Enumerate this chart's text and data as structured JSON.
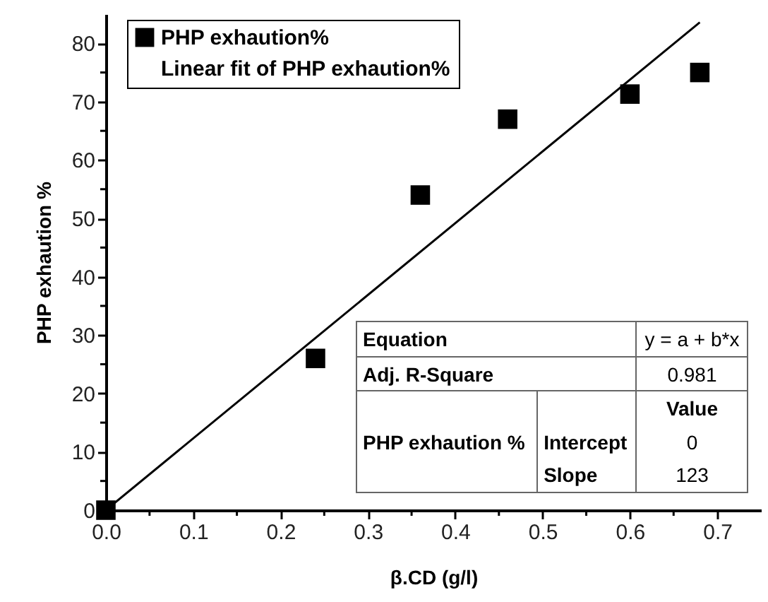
{
  "chart_data": {
    "type": "scatter",
    "xlabel": "β.CD (g/l)",
    "ylabel": "PHP exhaution %",
    "xlim": [
      0,
      0.75
    ],
    "ylim": [
      0,
      85
    ],
    "xticks": [
      {
        "value": 0,
        "label": "0.0"
      },
      {
        "value": 0.05,
        "label": null
      },
      0.1,
      {
        "value": 0.15,
        "label": null
      },
      0.2,
      {
        "value": 0.25,
        "label": null
      },
      0.3,
      {
        "value": 0.35,
        "label": null
      },
      0.4,
      {
        "value": 0.45,
        "label": null
      },
      0.5,
      {
        "value": 0.55,
        "label": null
      },
      0.6,
      {
        "value": 0.65,
        "label": null
      },
      0.7
    ],
    "yticks": [
      0,
      {
        "value": 5,
        "label": null
      },
      10,
      {
        "value": 15,
        "label": null
      },
      20,
      {
        "value": 25,
        "label": null
      },
      30,
      {
        "value": 35,
        "label": null
      },
      40,
      {
        "value": 45,
        "label": null
      },
      50,
      {
        "value": 55,
        "label": null
      },
      60,
      {
        "value": 65,
        "label": null
      },
      70,
      {
        "value": 75,
        "label": null
      },
      80
    ],
    "legend": "top left",
    "series": [
      {
        "name": "PHP exhaution%",
        "color": "#000000",
        "marker": "square",
        "x": [
          0,
          0.24,
          0.36,
          0.46,
          0.6,
          0.68
        ],
        "values": [
          0,
          26,
          54,
          67,
          71.3,
          75
        ]
      },
      {
        "name": "Linear fit of PHP exhaution%",
        "type": "line",
        "color": "#000000",
        "x": [
          0,
          0.68
        ],
        "values": [
          0,
          83.6
        ]
      }
    ],
    "annotations": [
      "Equation",
      "y = a + b*x",
      "Adj. R-Square",
      "0.981",
      "Value",
      "PHP exhaution %",
      "Intercept",
      "0",
      "Slope",
      "123"
    ]
  }
}
